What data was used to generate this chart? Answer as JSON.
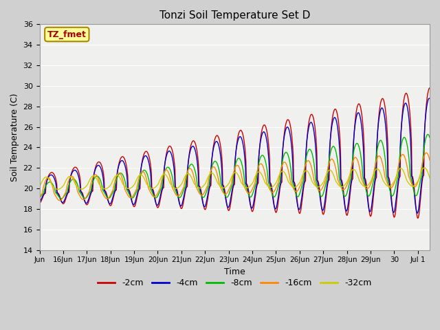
{
  "title": "Tonzi Soil Temperature Set D",
  "xlabel": "Time",
  "ylabel": "Soil Temperature (C)",
  "ylim": [
    14,
    36
  ],
  "yticks": [
    14,
    16,
    18,
    20,
    22,
    24,
    26,
    28,
    30,
    32,
    34,
    36
  ],
  "series": [
    {
      "label": "-2cm",
      "color": "#cc0000"
    },
    {
      "label": "-4cm",
      "color": "#0000cc"
    },
    {
      "label": "-8cm",
      "color": "#00bb00"
    },
    {
      "label": "-16cm",
      "color": "#ff8800"
    },
    {
      "label": "-32cm",
      "color": "#cccc00"
    }
  ],
  "annotation_text": "TZ_fmet",
  "annotation_bg": "#ffff99",
  "annotation_border": "#aa8800",
  "fig_bg": "#d0d0d0",
  "plot_bg": "#f0f0ee",
  "grid_color": "#ffffff"
}
